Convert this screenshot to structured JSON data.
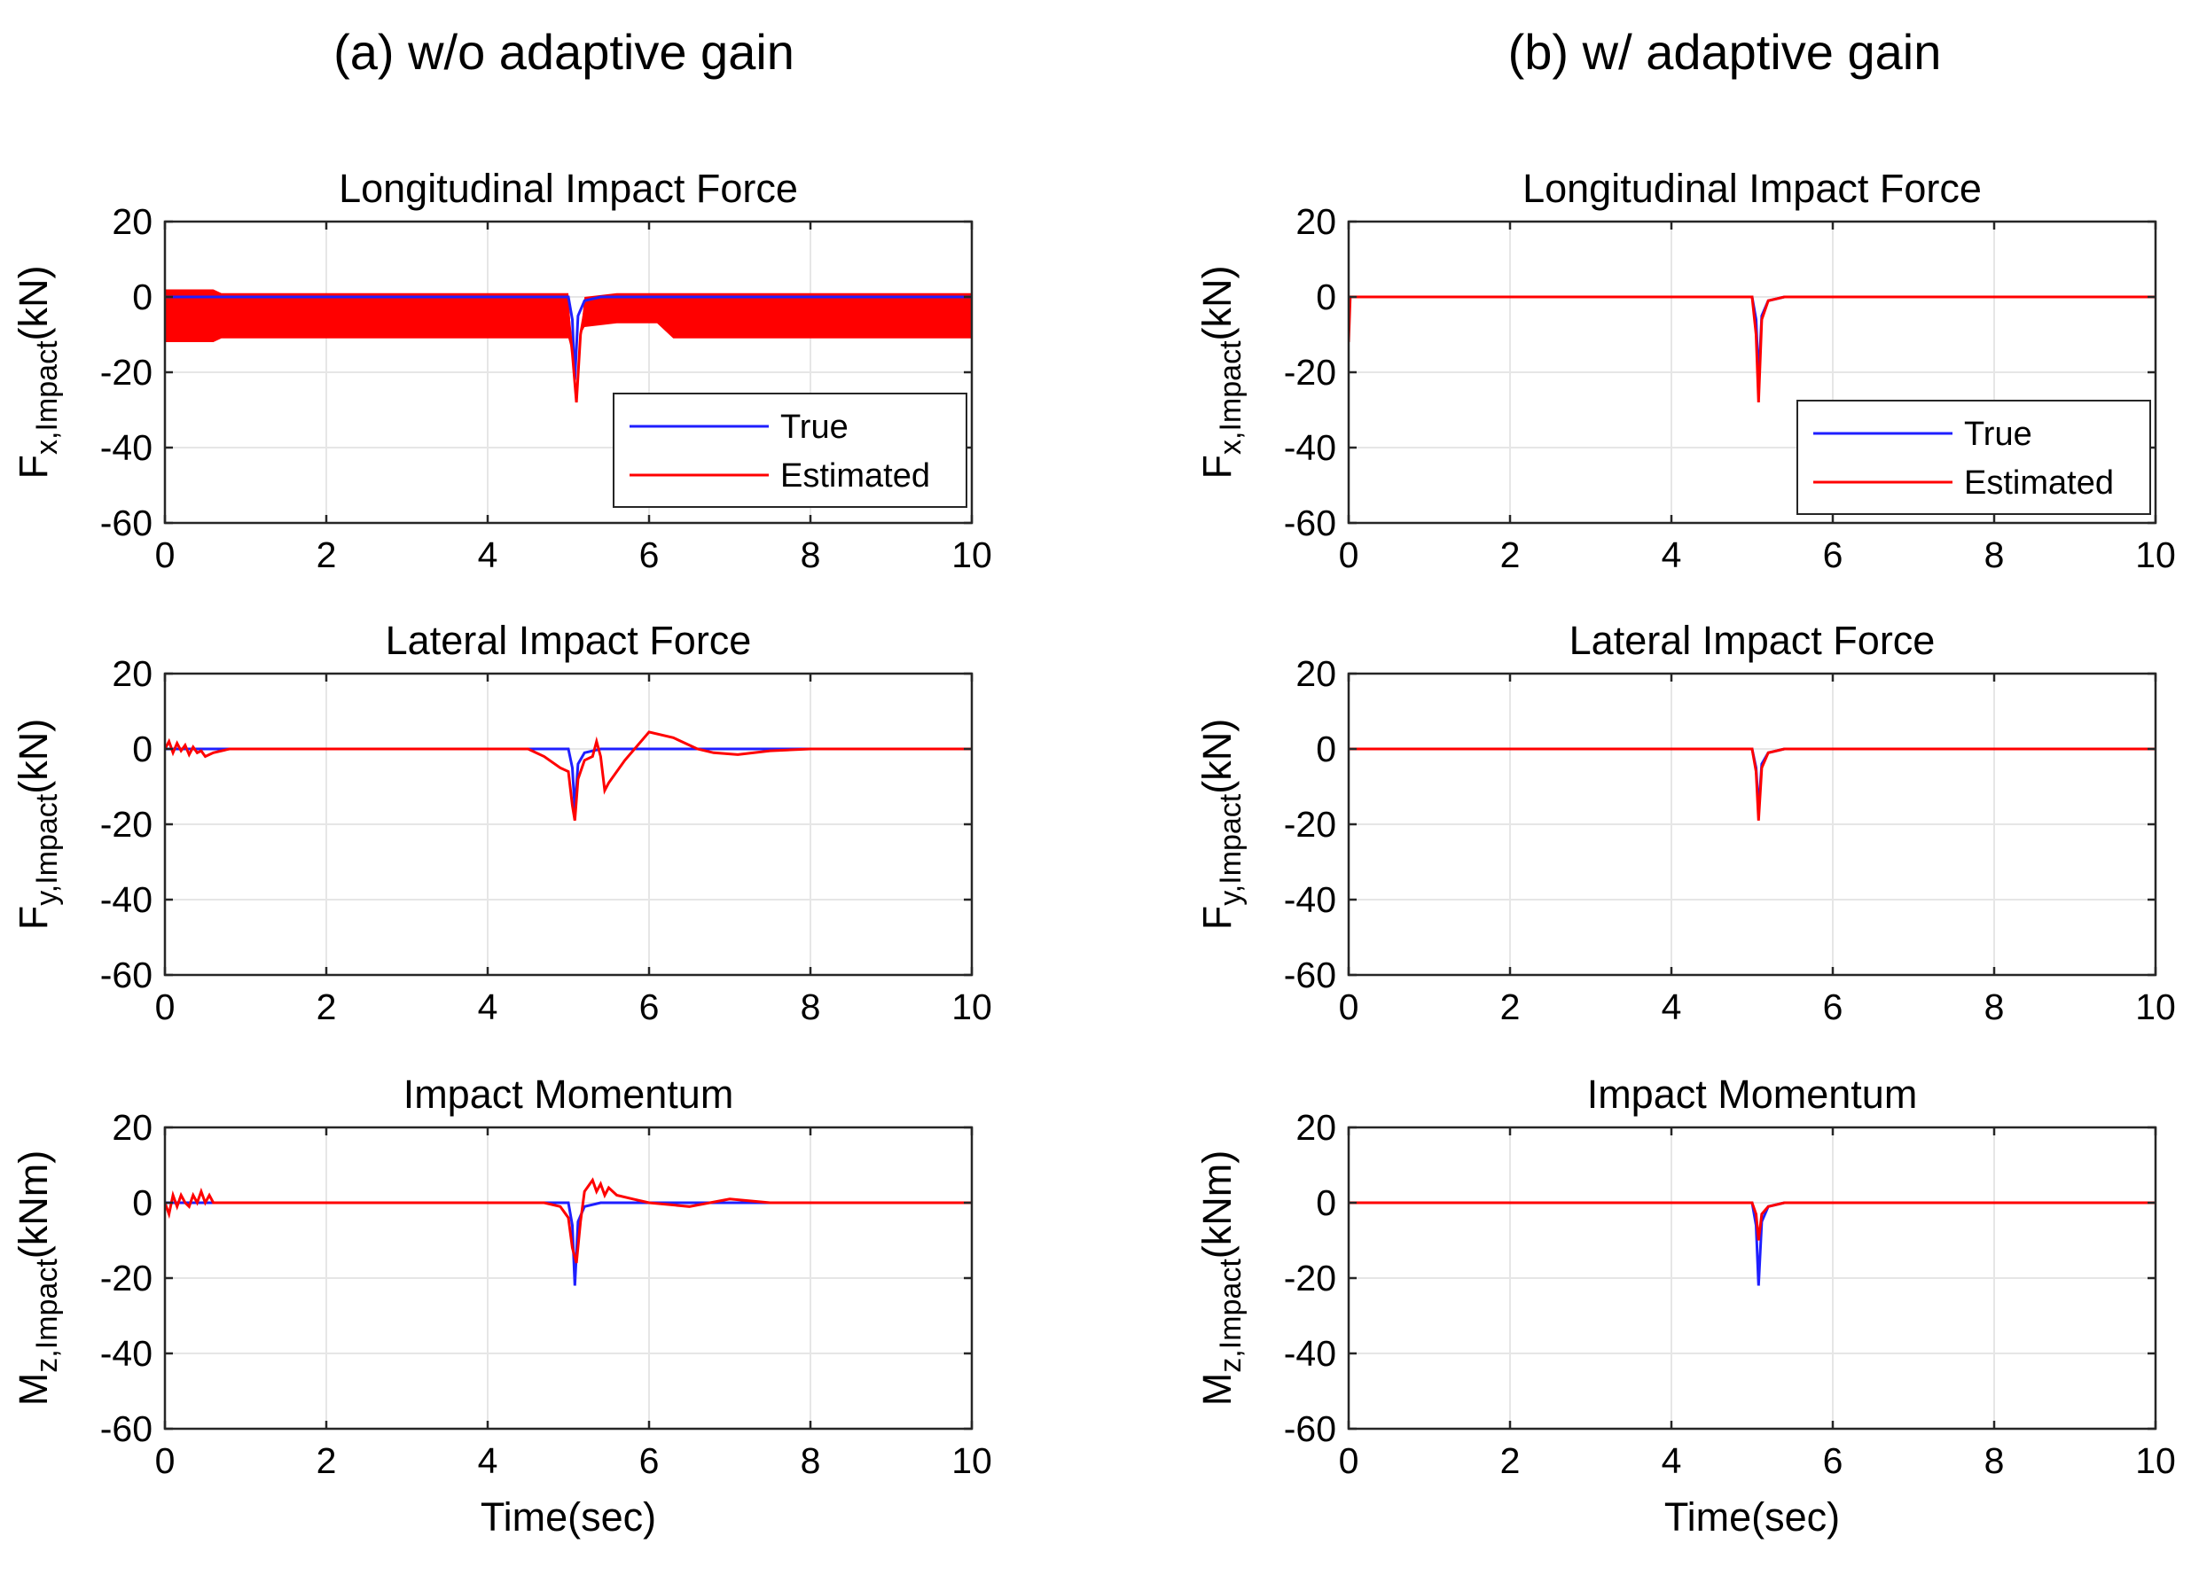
{
  "figure": {
    "panels": [
      {
        "key": "a",
        "title": "(a) w/o adaptive gain"
      },
      {
        "key": "b",
        "title": "(b) w/ adaptive gain"
      }
    ],
    "rows": [
      {
        "key": "fx",
        "title": "Longitudinal Impact Force",
        "ylabel_main": "F",
        "ylabel_sub": "x,Impact",
        "ylabel_unit": "(kN)"
      },
      {
        "key": "fy",
        "title": "Lateral Impact Force",
        "ylabel_main": "F",
        "ylabel_sub": "y,Impact",
        "ylabel_unit": "(kN)"
      },
      {
        "key": "mz",
        "title": "Impact Momentum",
        "ylabel_main": "M",
        "ylabel_sub": "z,Impact",
        "ylabel_unit": "(kNm)"
      }
    ],
    "xlabel": "Time(sec)",
    "legend": {
      "true_label": "True",
      "estimated_label": "Estimated"
    },
    "colors": {
      "true": "#1f1fff",
      "estimated": "#ff0000"
    }
  },
  "chart_data": [
    {
      "type": "line",
      "panel": "a",
      "row": "fx",
      "title": "Longitudinal Impact Force",
      "xlabel": "",
      "ylabel": "F_x,Impact (kN)",
      "xlim": [
        0,
        10
      ],
      "ylim": [
        -60,
        20
      ],
      "xticks": [
        0,
        2,
        4,
        6,
        8,
        10
      ],
      "yticks": [
        20,
        0,
        -20,
        -40,
        -60
      ],
      "legend": "inside-bottom-right",
      "series": [
        {
          "name": "True",
          "x": [
            0,
            5.0,
            5.05,
            5.08,
            5.12,
            5.2,
            5.4,
            10
          ],
          "y": [
            0,
            0,
            -6,
            -22,
            -5,
            -1,
            0,
            0
          ]
        },
        {
          "name": "Estimated",
          "x": [
            0,
            0.6,
            0.7,
            5.0,
            5.05,
            5.1,
            5.15,
            5.2,
            5.6,
            6.1,
            6.3,
            10
          ],
          "y": [
            -5,
            -5,
            -5,
            -5,
            -15,
            -28,
            -10,
            -4,
            -3,
            -3,
            -5,
            -5
          ],
          "band_halfwidth": [
            7,
            7,
            6,
            6,
            0,
            0,
            0,
            4,
            4,
            4,
            6,
            6
          ]
        }
      ]
    },
    {
      "type": "line",
      "panel": "a",
      "row": "fy",
      "title": "Lateral Impact Force",
      "xlabel": "",
      "ylabel": "F_y,Impact (kN)",
      "xlim": [
        0,
        10
      ],
      "ylim": [
        -60,
        20
      ],
      "xticks": [
        0,
        2,
        4,
        6,
        8,
        10
      ],
      "yticks": [
        20,
        0,
        -20,
        -40,
        -60
      ],
      "series": [
        {
          "name": "True",
          "x": [
            0,
            5.0,
            5.05,
            5.08,
            5.12,
            5.2,
            5.4,
            10
          ],
          "y": [
            0,
            0,
            -5,
            -16,
            -4,
            -1,
            0,
            0
          ]
        },
        {
          "name": "Estimated",
          "x": [
            0,
            0.05,
            0.1,
            0.15,
            0.2,
            0.25,
            0.3,
            0.35,
            0.4,
            0.45,
            0.5,
            0.6,
            0.8,
            1.0,
            4.5,
            4.7,
            4.9,
            5.0,
            5.05,
            5.08,
            5.12,
            5.2,
            5.3,
            5.35,
            5.4,
            5.45,
            5.5,
            5.7,
            6.0,
            6.3,
            6.6,
            6.8,
            7.1,
            7.5,
            8.0,
            10
          ],
          "y": [
            0,
            2,
            -1,
            1.5,
            -0.5,
            1,
            -1.5,
            0.5,
            -1,
            -0.5,
            -2,
            -1,
            0,
            0,
            0,
            -2,
            -5,
            -6,
            -15,
            -19,
            -8,
            -3,
            -2,
            2,
            -2,
            -11,
            -9,
            -3,
            4.5,
            3,
            0,
            -1,
            -1.5,
            -0.5,
            0,
            0
          ]
        }
      ]
    },
    {
      "type": "line",
      "panel": "a",
      "row": "mz",
      "title": "Impact Momentum",
      "xlabel": "Time(sec)",
      "ylabel": "M_z,Impact (kNm)",
      "xlim": [
        0,
        10
      ],
      "ylim": [
        -60,
        20
      ],
      "xticks": [
        0,
        2,
        4,
        6,
        8,
        10
      ],
      "yticks": [
        20,
        0,
        -20,
        -40,
        -60
      ],
      "series": [
        {
          "name": "True",
          "x": [
            0,
            5.0,
            5.05,
            5.08,
            5.12,
            5.2,
            5.4,
            10
          ],
          "y": [
            0,
            0,
            -6,
            -22,
            -5,
            -1,
            0,
            0
          ]
        },
        {
          "name": "Estimated",
          "x": [
            0,
            0.05,
            0.1,
            0.15,
            0.2,
            0.25,
            0.3,
            0.35,
            0.4,
            0.45,
            0.5,
            0.55,
            0.6,
            0.8,
            1.0,
            4.7,
            4.9,
            5.0,
            5.05,
            5.1,
            5.15,
            5.2,
            5.3,
            5.35,
            5.4,
            5.45,
            5.5,
            5.6,
            5.8,
            6.0,
            6.5,
            7.0,
            7.5,
            10
          ],
          "y": [
            0,
            -3,
            2,
            -1,
            2,
            0,
            -1,
            2,
            0,
            3,
            0,
            2,
            0,
            0,
            0,
            0,
            -1,
            -4,
            -12,
            -16,
            -5,
            3,
            6,
            3,
            5,
            2,
            4,
            2,
            1,
            0,
            -1,
            1,
            0,
            0
          ]
        }
      ]
    },
    {
      "type": "line",
      "panel": "b",
      "row": "fx",
      "title": "Longitudinal Impact Force",
      "xlabel": "",
      "ylabel": "F_x,Impact (kN)",
      "xlim": [
        0,
        10
      ],
      "ylim": [
        -60,
        20
      ],
      "xticks": [
        0,
        2,
        4,
        6,
        8,
        10
      ],
      "yticks": [
        20,
        0,
        -20,
        -40,
        -60
      ],
      "legend": "inside-bottom-right",
      "series": [
        {
          "name": "True",
          "x": [
            0,
            5.0,
            5.05,
            5.08,
            5.12,
            5.2,
            5.4,
            10
          ],
          "y": [
            0,
            0,
            -6,
            -22,
            -5,
            -1,
            0,
            0
          ]
        },
        {
          "name": "Estimated",
          "x": [
            0,
            0.02,
            0.05,
            5.0,
            5.05,
            5.08,
            5.12,
            5.2,
            5.4,
            10
          ],
          "y": [
            -12,
            0,
            0,
            0,
            -10,
            -28,
            -6,
            -1,
            0,
            0
          ]
        }
      ]
    },
    {
      "type": "line",
      "panel": "b",
      "row": "fy",
      "title": "Lateral Impact Force",
      "xlabel": "",
      "ylabel": "F_y,Impact (kN)",
      "xlim": [
        0,
        10
      ],
      "ylim": [
        -60,
        20
      ],
      "xticks": [
        0,
        2,
        4,
        6,
        8,
        10
      ],
      "yticks": [
        20,
        0,
        -20,
        -40,
        -60
      ],
      "series": [
        {
          "name": "True",
          "x": [
            0,
            5.0,
            5.05,
            5.08,
            5.12,
            5.2,
            5.4,
            10
          ],
          "y": [
            0,
            0,
            -5,
            -16,
            -4,
            -1,
            0,
            0
          ]
        },
        {
          "name": "Estimated",
          "x": [
            0,
            5.0,
            5.05,
            5.08,
            5.12,
            5.2,
            5.4,
            10
          ],
          "y": [
            0,
            0,
            -6,
            -19,
            -5,
            -1,
            0,
            0
          ]
        }
      ]
    },
    {
      "type": "line",
      "panel": "b",
      "row": "mz",
      "title": "Impact Momentum",
      "xlabel": "Time(sec)",
      "ylabel": "M_z,Impact (kNm)",
      "xlim": [
        0,
        10
      ],
      "ylim": [
        -60,
        20
      ],
      "xticks": [
        0,
        2,
        4,
        6,
        8,
        10
      ],
      "yticks": [
        20,
        0,
        -20,
        -40,
        -60
      ],
      "series": [
        {
          "name": "True",
          "x": [
            0,
            5.0,
            5.05,
            5.08,
            5.12,
            5.2,
            5.4,
            10
          ],
          "y": [
            0,
            0,
            -6,
            -22,
            -5,
            -1,
            0,
            0
          ]
        },
        {
          "name": "Estimated",
          "x": [
            0,
            5.0,
            5.05,
            5.08,
            5.12,
            5.2,
            5.4,
            10
          ],
          "y": [
            0,
            0,
            -3,
            -10,
            -3,
            -1,
            0,
            0
          ]
        }
      ]
    }
  ]
}
